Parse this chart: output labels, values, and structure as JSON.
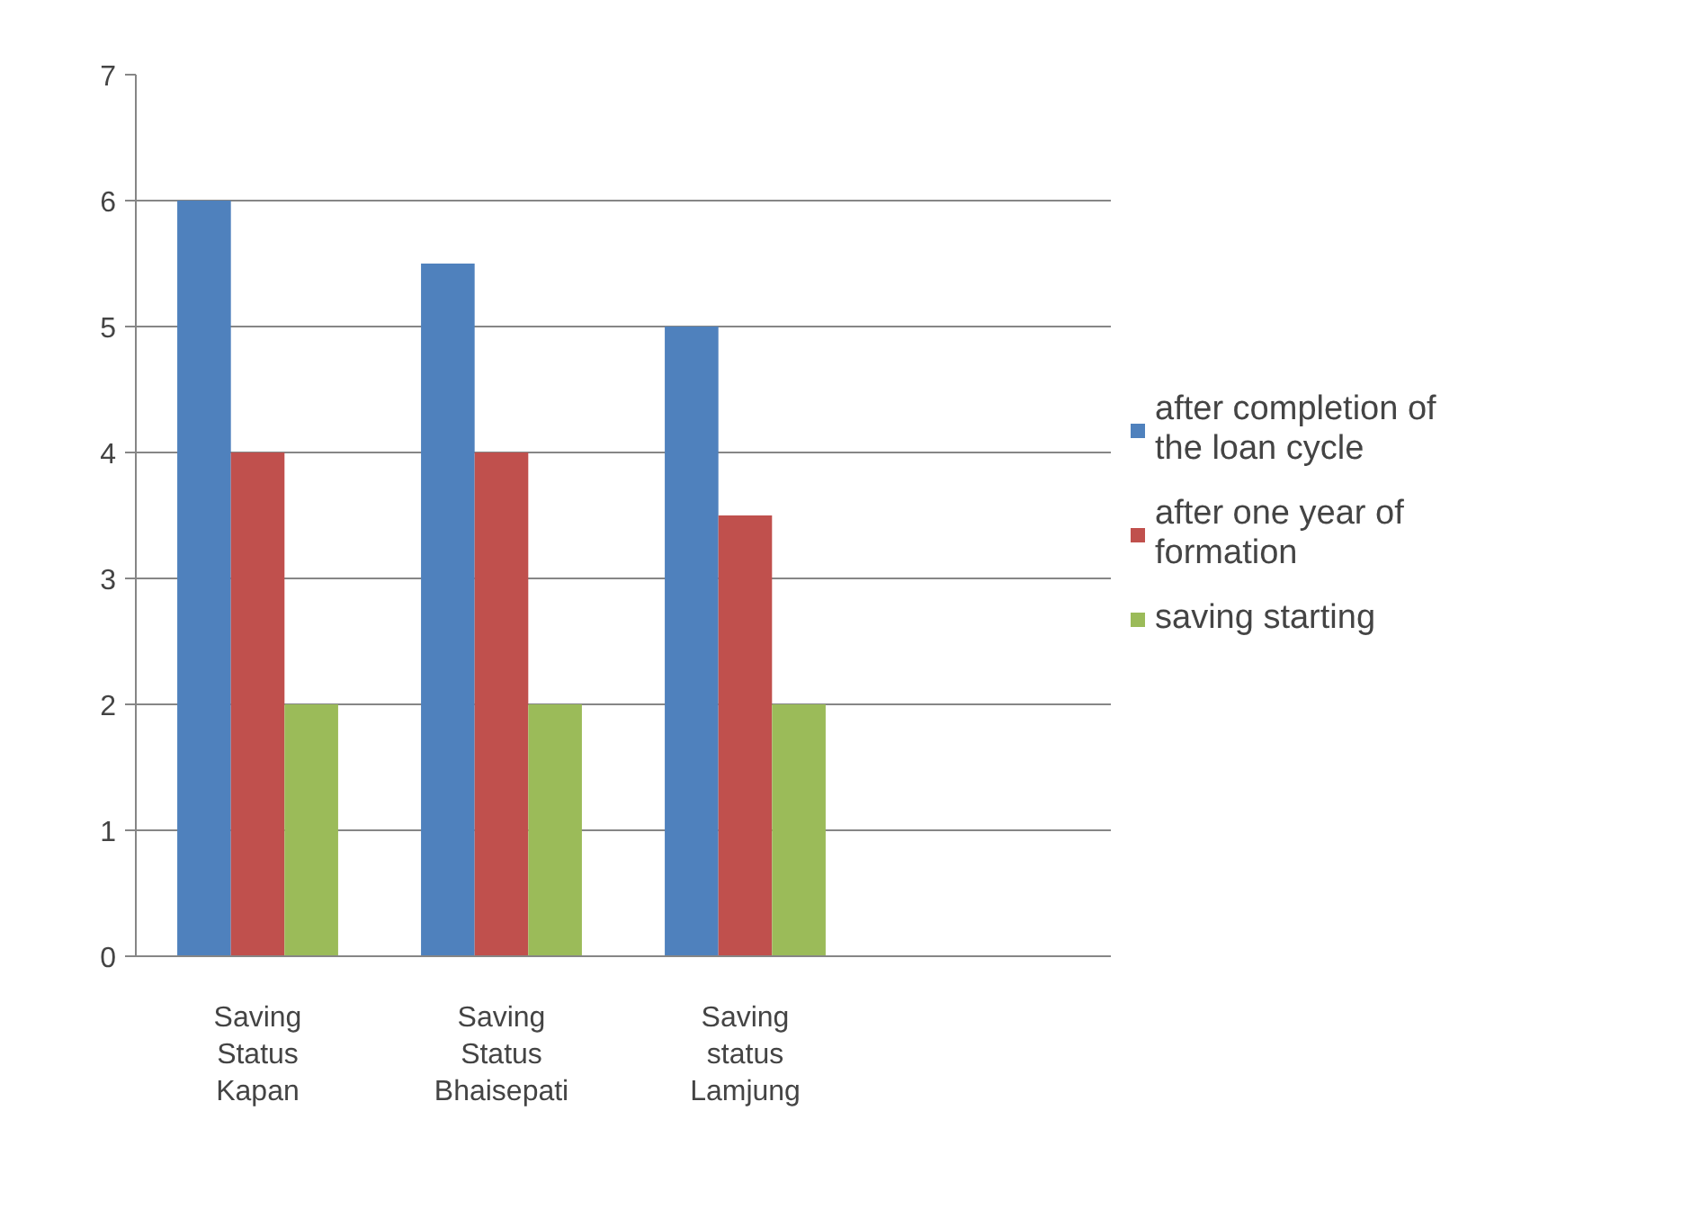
{
  "chart_data": {
    "type": "bar",
    "categories": [
      "Saving Status Kapan",
      "Saving Status Bhaisepati",
      "Saving status Lamjung",
      null
    ],
    "series": [
      {
        "name": "after completion of the loan cycle",
        "color": "#4f81bd",
        "values": [
          6,
          5.5,
          5,
          null
        ]
      },
      {
        "name": "after one year of formation",
        "color": "#c0504d",
        "values": [
          4,
          4,
          3.5,
          null
        ]
      },
      {
        "name": "saving starting",
        "color": "#9bbb59",
        "values": [
          2,
          2,
          2,
          null
        ]
      }
    ],
    "ylim": [
      0,
      7
    ],
    "yticks": [
      0,
      1,
      2,
      3,
      4,
      5,
      6,
      7
    ],
    "grid": "y",
    "legend": "right"
  }
}
